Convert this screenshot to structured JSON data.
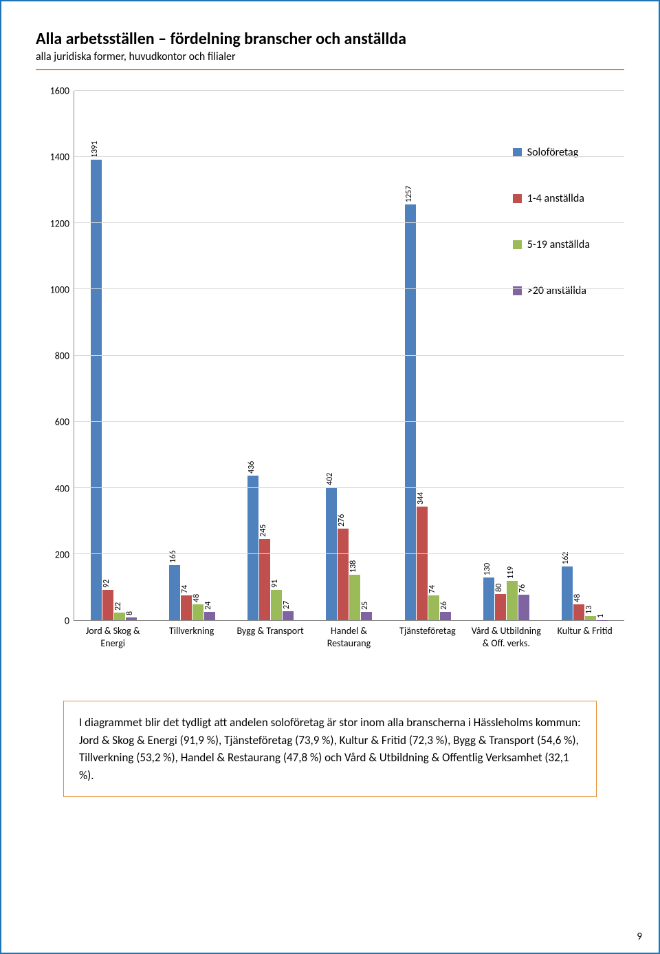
{
  "header": {
    "title": "Alla arbetsställen – fördelning branscher och anställda",
    "subtitle": "alla juridiska former, huvudkontor och filialer"
  },
  "chart": {
    "type": "grouped-bar",
    "ylim": [
      0,
      1600
    ],
    "ytick_step": 200,
    "yticks": [
      0,
      200,
      400,
      600,
      800,
      1000,
      1200,
      1400,
      1600
    ],
    "background_color": "#ffffff",
    "grid_color": "#d9d9d9",
    "axis_color": "#888888",
    "bar_label_fontsize": 12,
    "xlabel_fontsize": 14,
    "ytick_fontsize": 14,
    "series": [
      {
        "name": "Soloföretag",
        "color": "#4f81bd"
      },
      {
        "name": "1-4 anställda",
        "color": "#c0504d"
      },
      {
        "name": "5-19 anställda",
        "color": "#9bbb59"
      },
      {
        "name": ">20 anställda",
        "color": "#8064a2"
      }
    ],
    "categories": [
      "Jord & Skog & Energi",
      "Tillverkning",
      "Bygg & Transport",
      "Handel & Restaurang",
      "Tjänsteföretag",
      "Vård & Utbildning & Off. verks.",
      "Kultur & Fritid"
    ],
    "values": [
      [
        1391,
        92,
        22,
        8
      ],
      [
        166,
        74,
        48,
        24
      ],
      [
        436,
        245,
        91,
        27
      ],
      [
        402,
        276,
        138,
        25
      ],
      [
        1257,
        344,
        74,
        26
      ],
      [
        130,
        80,
        119,
        76
      ],
      [
        162,
        48,
        13,
        1
      ]
    ]
  },
  "legend": {
    "items": [
      "Soloföretag",
      "1-4 anställda",
      "5-19 anställda",
      ">20 anställda"
    ]
  },
  "info_box": {
    "text": "I diagrammet blir det tydligt att andelen soloföretag är stor inom alla branscherna i Hässleholms kommun: Jord & Skog & Energi (91,9 %), Tjänsteföretag (73,9 %), Kultur & Fritid (72,3 %), Bygg & Transport (54,6 %), Tillverkning (53,2 %), Handel & Restaurang (47,8 %) och Vård & Utbildning & Offentlig Verksamhet (32,1 %)."
  },
  "page_number": "9"
}
